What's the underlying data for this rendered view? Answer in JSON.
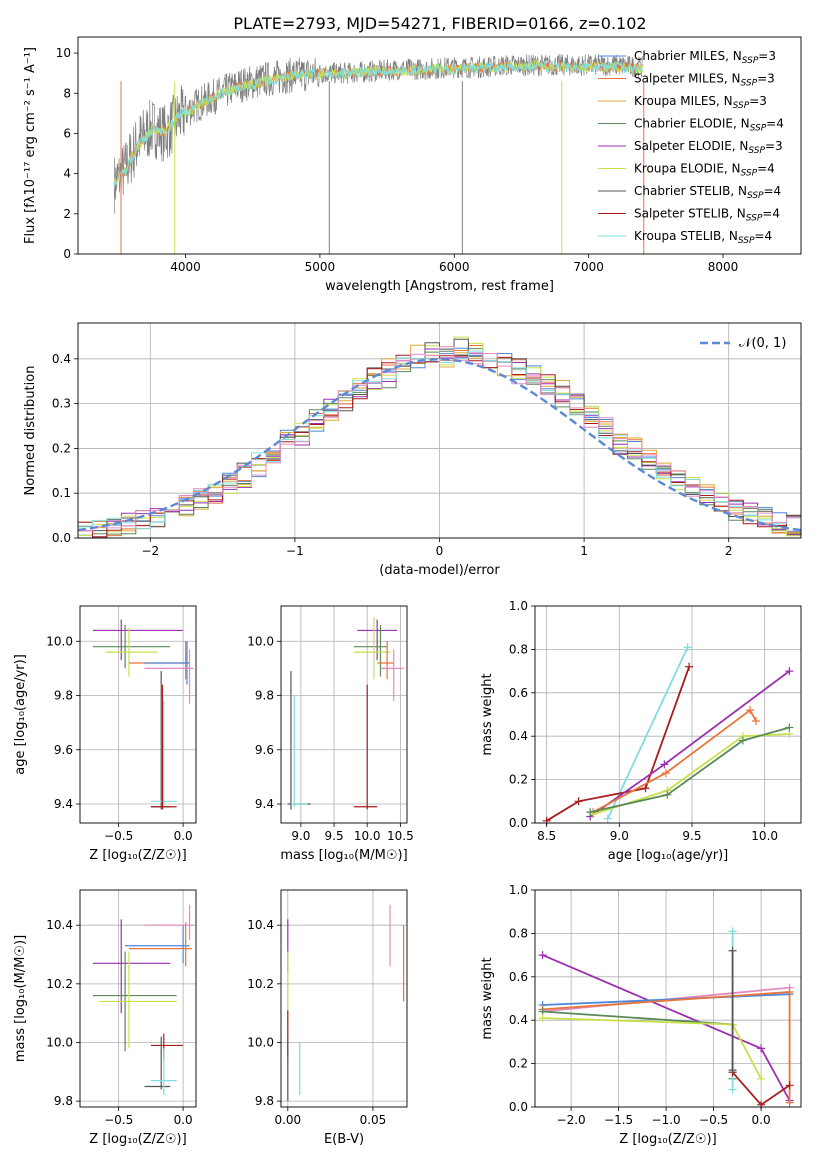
{
  "figure_title": "PLATE=2793, MJD=54271, FIBERID=0166, z=0.102",
  "colors": {
    "chabrier_miles": "#4f86d9",
    "salpeter_miles": "#e8753a",
    "kroupa_miles": "#e0a83a",
    "chabrier_elodie": "#5a8a5a",
    "salpeter_elodie": "#9c2fb0",
    "kroupa_elodie": "#c8e04a",
    "chabrier_stelib": "#555555",
    "salpeter_stelib": "#a81c1c",
    "kroupa_stelib": "#7fdde0",
    "pink": "#e58ac0",
    "data_gray": "#808080",
    "normal_curve": "#5b8ad6",
    "grid": "#b0b0b0"
  },
  "chart_data": [
    {
      "id": "spectrum",
      "type": "line",
      "title": "PLATE=2793, MJD=54271, FIBERID=0166, z=0.102",
      "xlabel": "wavelength [Angstrom, rest frame]",
      "ylabel": "Flux [fλ10⁻¹⁷ erg cm⁻² s⁻¹ A⁻¹]",
      "xlim": [
        3200,
        8580
      ],
      "ylim": [
        0,
        10.8
      ],
      "xticks": [
        4000,
        5000,
        6000,
        7000,
        8000
      ],
      "yticks": [
        0,
        2,
        4,
        6,
        8,
        10
      ],
      "grid": false,
      "legend_position": "top-right",
      "legend": [
        "Chabrier MILES, NSSP=3",
        "Salpeter MILES, NSSP=3",
        "Kroupa MILES, NSSP=3",
        "Chabrier ELODIE, NSSP=4",
        "Salpeter ELODIE, NSSP=3",
        "Kroupa ELODIE, NSSP=4",
        "Chabrier STELIB, NSSP=4",
        "Salpeter STELIB, NSSP=4",
        "Kroupa STELIB, NSSP=4"
      ],
      "series": [
        {
          "name": "data",
          "x": [
            3470,
            3550,
            3650,
            3750,
            3850,
            3950,
            4050,
            4200,
            4400,
            4600,
            4800,
            5000,
            5200,
            5400,
            5600,
            5800,
            6000,
            6200,
            6400,
            6600,
            6800,
            7000,
            7200,
            7400
          ],
          "y": [
            3.5,
            4.2,
            5.6,
            6.3,
            6.0,
            6.8,
            7.3,
            7.8,
            8.4,
            8.7,
            8.9,
            9.0,
            9.0,
            9.1,
            9.2,
            9.2,
            9.3,
            9.3,
            9.4,
            9.4,
            9.4,
            9.4,
            9.4,
            9.3
          ]
        },
        {
          "name": "model",
          "x": [
            3470,
            3550,
            3650,
            3750,
            3850,
            3950,
            4050,
            4200,
            4400,
            4600,
            4800,
            5000,
            5200,
            5400,
            5600,
            5800,
            6000,
            6200,
            6400,
            6600,
            6800,
            7000,
            7200,
            7400
          ],
          "y": [
            3.6,
            4.1,
            5.4,
            6.2,
            6.1,
            6.9,
            7.2,
            7.8,
            8.3,
            8.6,
            8.9,
            9.0,
            9.0,
            9.1,
            9.1,
            9.2,
            9.2,
            9.3,
            9.3,
            9.4,
            9.3,
            9.3,
            9.3,
            9.2
          ]
        }
      ]
    },
    {
      "id": "residuals",
      "type": "line",
      "xlabel": "(data-model)/error",
      "ylabel": "Normed distribution",
      "xlim": [
        -2.5,
        2.5
      ],
      "ylim": [
        0,
        0.48
      ],
      "xticks": [
        -2,
        -1,
        0,
        1,
        2
      ],
      "yticks": [
        0.0,
        0.1,
        0.2,
        0.3,
        0.4
      ],
      "grid": true,
      "legend_position": "top-right",
      "legend": [
        "𝒩(0, 1)"
      ],
      "series": [
        {
          "name": "𝒩(0, 1)",
          "x": [
            -2.5,
            -2.25,
            -2,
            -1.75,
            -1.5,
            -1.25,
            -1,
            -0.75,
            -0.5,
            -0.25,
            0,
            0.25,
            0.5,
            0.75,
            1,
            1.25,
            1.5,
            1.75,
            2,
            2.25,
            2.5
          ],
          "y": [
            0.018,
            0.032,
            0.054,
            0.086,
            0.13,
            0.183,
            0.242,
            0.301,
            0.352,
            0.387,
            0.399,
            0.387,
            0.352,
            0.301,
            0.242,
            0.183,
            0.13,
            0.086,
            0.054,
            0.032,
            0.018
          ]
        }
      ]
    },
    {
      "id": "age_vs_Z",
      "type": "scatter",
      "xlabel": "Z [log₁₀(Z/Z☉)]",
      "ylabel": "age  [log₁₀(age/yr)]",
      "xlim": [
        -0.8,
        0.1
      ],
      "ylim": [
        9.33,
        10.13
      ],
      "xticks": [
        -0.5,
        0.0
      ],
      "xticklabels": [
        "−0.5",
        "0.0"
      ],
      "yticks": [
        9.4,
        9.6,
        9.8,
        10.0
      ],
      "grid": true
    },
    {
      "id": "age_vs_mass",
      "type": "scatter",
      "xlabel": "mass [log₁₀(M/M☉)]",
      "ylabel": "",
      "xlim": [
        8.7,
        10.6
      ],
      "ylim": [
        9.33,
        10.13
      ],
      "xticks": [
        9.0,
        9.5,
        10.0,
        10.5
      ],
      "yticks": [
        9.4,
        9.6,
        9.8,
        10.0
      ],
      "grid": true
    },
    {
      "id": "massweight_vs_age",
      "type": "line",
      "xlabel": "age  [log₁₀(age/yr)]",
      "ylabel": "mass weight",
      "xlim": [
        8.42,
        10.25
      ],
      "ylim": [
        0,
        1.0
      ],
      "xticks": [
        8.5,
        9.0,
        9.5,
        10.0
      ],
      "yticks": [
        0.0,
        0.2,
        0.4,
        0.6,
        0.8,
        1.0
      ],
      "grid": true,
      "series": [
        {
          "name": "kroupa_stelib",
          "x": [
            8.92,
            9.47
          ],
          "y": [
            0.02,
            0.81
          ]
        },
        {
          "name": "salpeter_stelib",
          "x": [
            8.5,
            8.72,
            9.18,
            9.48
          ],
          "y": [
            0.01,
            0.1,
            0.16,
            0.72
          ]
        },
        {
          "name": "salpeter_elodie",
          "x": [
            8.8,
            9.31,
            10.17
          ],
          "y": [
            0.03,
            0.27,
            0.7
          ]
        },
        {
          "name": "salpeter_miles",
          "x": [
            8.82,
            9.32,
            9.9,
            9.94
          ],
          "y": [
            0.05,
            0.23,
            0.52,
            0.47
          ]
        },
        {
          "name": "kroupa_elodie",
          "x": [
            8.82,
            9.33,
            9.85,
            10.17
          ],
          "y": [
            0.04,
            0.15,
            0.4,
            0.41
          ]
        },
        {
          "name": "chabrier_elodie",
          "x": [
            8.8,
            9.33,
            9.85,
            10.17
          ],
          "y": [
            0.05,
            0.13,
            0.38,
            0.44
          ]
        }
      ]
    },
    {
      "id": "mass_vs_Z",
      "type": "scatter",
      "xlabel": "Z [log₁₀(Z/Z☉)]",
      "ylabel": "mass [log₁₀(M/M☉)]",
      "xlim": [
        -0.8,
        0.1
      ],
      "ylim": [
        9.78,
        10.52
      ],
      "xticks": [
        -0.5,
        0.0
      ],
      "xticklabels": [
        "−0.5",
        "0.0"
      ],
      "yticks": [
        9.8,
        10.0,
        10.2,
        10.4
      ],
      "grid": true
    },
    {
      "id": "mass_vs_ebv",
      "type": "scatter",
      "xlabel": "E(B-V)",
      "ylabel": "",
      "xlim": [
        -0.004,
        0.07
      ],
      "ylim": [
        9.78,
        10.52
      ],
      "xticks": [
        0.0,
        0.05
      ],
      "xticklabels": [
        "0.00",
        "0.05"
      ],
      "yticks": [
        9.8,
        10.0,
        10.2,
        10.4
      ],
      "grid": true
    },
    {
      "id": "massweight_vs_Z",
      "type": "line",
      "xlabel": "Z [log₁₀(Z/Z☉)]",
      "ylabel": "mass weight",
      "xlim": [
        -2.38,
        0.42
      ],
      "ylim": [
        0,
        1.0
      ],
      "xticks": [
        -2.0,
        -1.5,
        -1.0,
        -0.5,
        0.0
      ],
      "xticklabels": [
        "−2.0",
        "−1.5",
        "−1.0",
        "−0.5",
        "0.0"
      ],
      "yticks": [
        0.0,
        0.2,
        0.4,
        0.6,
        0.8,
        1.0
      ],
      "grid": true,
      "series": [
        {
          "name": "salpeter_elodie",
          "x": [
            -2.3,
            0.0,
            0.3
          ],
          "y": [
            0.7,
            0.27,
            0.03
          ]
        },
        {
          "name": "pink",
          "x": [
            -2.3,
            0.3
          ],
          "y": [
            0.44,
            0.55
          ]
        },
        {
          "name": "chabrier_miles",
          "x": [
            -2.3,
            0.3
          ],
          "y": [
            0.47,
            0.52
          ]
        },
        {
          "name": "salpeter_miles",
          "x": [
            -2.3,
            0.3,
            0.3
          ],
          "y": [
            0.45,
            0.53,
            0.02
          ]
        },
        {
          "name": "chabrier_elodie",
          "x": [
            -2.3,
            -0.3,
            -0.3
          ],
          "y": [
            0.44,
            0.38,
            0.13
          ]
        },
        {
          "name": "kroupa_elodie",
          "x": [
            -2.3,
            -0.3,
            0.0
          ],
          "y": [
            0.41,
            0.38,
            0.13
          ]
        },
        {
          "name": "kroupa_stelib",
          "x": [
            -0.3,
            -0.3
          ],
          "y": [
            0.81,
            0.08
          ]
        },
        {
          "name": "salpeter_stelib",
          "x": [
            -0.3,
            0.0,
            0.3
          ],
          "y": [
            0.16,
            0.01,
            0.1
          ]
        },
        {
          "name": "chabrier_stelib",
          "x": [
            -0.3,
            -0.3
          ],
          "y": [
            0.72,
            0.17
          ]
        }
      ]
    }
  ]
}
